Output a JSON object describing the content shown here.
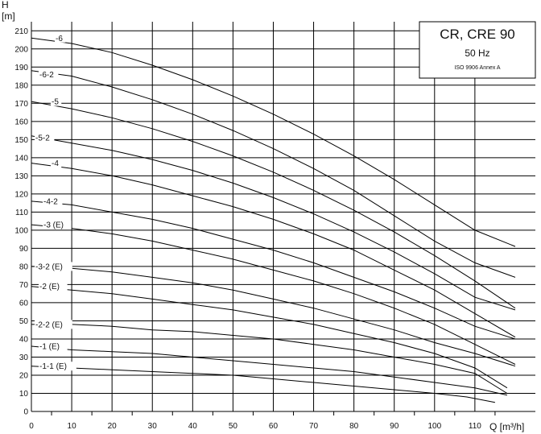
{
  "chart_data": {
    "type": "line",
    "title": "CR, CRE 90",
    "subtitle": "50 Hz",
    "note": "ISO 9906 Annex A",
    "xlabel": "Q [m³/h]",
    "ylabel_top": "H",
    "ylabel_unit": "[m]",
    "xlim": [
      0,
      125
    ],
    "ylim": [
      0,
      215
    ],
    "x_ticks": [
      "0",
      "10",
      "20",
      "30",
      "40",
      "50",
      "60",
      "70",
      "80",
      "90",
      "100",
      "110"
    ],
    "x_tick_values": [
      0,
      10,
      20,
      30,
      40,
      50,
      60,
      70,
      80,
      90,
      100,
      110
    ],
    "y_ticks": [
      "0",
      "10",
      "20",
      "30",
      "40",
      "50",
      "60",
      "70",
      "80",
      "90",
      "100",
      "110",
      "120",
      "130",
      "140",
      "150",
      "160",
      "170",
      "180",
      "190",
      "200",
      "210"
    ],
    "y_tick_values": [
      0,
      10,
      20,
      30,
      40,
      50,
      60,
      70,
      80,
      90,
      100,
      110,
      120,
      130,
      140,
      150,
      160,
      170,
      180,
      190,
      200,
      210
    ],
    "grid": true,
    "series": [
      {
        "name": "-6",
        "label_x": 6,
        "label_y": 206,
        "points": [
          [
            0,
            206
          ],
          [
            10,
            203
          ],
          [
            20,
            198
          ],
          [
            30,
            191
          ],
          [
            40,
            183
          ],
          [
            50,
            174
          ],
          [
            60,
            164
          ],
          [
            70,
            153
          ],
          [
            80,
            141
          ],
          [
            90,
            128
          ],
          [
            100,
            114
          ],
          [
            110,
            100
          ],
          [
            120,
            91
          ]
        ]
      },
      {
        "name": "-6-2",
        "label_x": 2,
        "label_y": 186,
        "points": [
          [
            0,
            188
          ],
          [
            10,
            185
          ],
          [
            20,
            179
          ],
          [
            30,
            172
          ],
          [
            40,
            164
          ],
          [
            50,
            155
          ],
          [
            60,
            145
          ],
          [
            70,
            134
          ],
          [
            80,
            122
          ],
          [
            90,
            108
          ],
          [
            100,
            94
          ],
          [
            110,
            82
          ],
          [
            120,
            74
          ]
        ]
      },
      {
        "name": "-5",
        "label_x": 5,
        "label_y": 171,
        "points": [
          [
            0,
            171
          ],
          [
            10,
            167
          ],
          [
            20,
            162
          ],
          [
            30,
            156
          ],
          [
            40,
            149
          ],
          [
            50,
            141
          ],
          [
            60,
            132
          ],
          [
            70,
            122
          ],
          [
            80,
            111
          ],
          [
            90,
            99
          ],
          [
            100,
            86
          ],
          [
            110,
            72
          ],
          [
            120,
            57
          ]
        ]
      },
      {
        "name": "-5-2",
        "label_x": 1,
        "label_y": 151,
        "points": [
          [
            0,
            152
          ],
          [
            10,
            148
          ],
          [
            20,
            144
          ],
          [
            30,
            139
          ],
          [
            40,
            133
          ],
          [
            50,
            126
          ],
          [
            60,
            118
          ],
          [
            70,
            109
          ],
          [
            80,
            99
          ],
          [
            90,
            88
          ],
          [
            100,
            76
          ],
          [
            110,
            63
          ],
          [
            120,
            56
          ]
        ]
      },
      {
        "name": "-4",
        "label_x": 5,
        "label_y": 137,
        "points": [
          [
            0,
            137
          ],
          [
            10,
            134
          ],
          [
            20,
            130
          ],
          [
            30,
            125
          ],
          [
            40,
            119
          ],
          [
            50,
            113
          ],
          [
            60,
            106
          ],
          [
            70,
            98
          ],
          [
            80,
            89
          ],
          [
            90,
            78
          ],
          [
            100,
            67
          ],
          [
            110,
            54
          ],
          [
            120,
            41
          ]
        ]
      },
      {
        "name": "-4-2",
        "label_x": 3,
        "label_y": 116,
        "points": [
          [
            0,
            116
          ],
          [
            10,
            114
          ],
          [
            20,
            110
          ],
          [
            30,
            106
          ],
          [
            40,
            101
          ],
          [
            50,
            95
          ],
          [
            60,
            89
          ],
          [
            70,
            82
          ],
          [
            80,
            74
          ],
          [
            90,
            66
          ],
          [
            100,
            57
          ],
          [
            110,
            47
          ],
          [
            120,
            40
          ]
        ]
      },
      {
        "name": "-3 (E)",
        "label_x": 3,
        "label_y": 103,
        "points": [
          [
            0,
            103
          ],
          [
            10,
            101
          ],
          [
            20,
            98
          ],
          [
            30,
            94
          ],
          [
            40,
            89
          ],
          [
            50,
            84
          ],
          [
            60,
            78
          ],
          [
            70,
            72
          ],
          [
            80,
            65
          ],
          [
            90,
            57
          ],
          [
            100,
            48
          ],
          [
            110,
            37
          ],
          [
            120,
            26
          ]
        ]
      },
      {
        "name": "-3-2 (E)",
        "label_x": 1,
        "label_y": 80,
        "points": [
          [
            0,
            80
          ],
          [
            10,
            79
          ],
          [
            20,
            77
          ],
          [
            30,
            74
          ],
          [
            40,
            71
          ],
          [
            50,
            67
          ],
          [
            60,
            62
          ],
          [
            70,
            57
          ],
          [
            80,
            51
          ],
          [
            90,
            45
          ],
          [
            100,
            38
          ],
          [
            110,
            32
          ],
          [
            120,
            25
          ]
        ]
      },
      {
        "name": "-2 (E)",
        "label_x": 2,
        "label_y": 69,
        "points": [
          [
            0,
            69
          ],
          [
            10,
            67
          ],
          [
            20,
            65
          ],
          [
            30,
            62
          ],
          [
            40,
            59
          ],
          [
            50,
            56
          ],
          [
            60,
            52
          ],
          [
            70,
            48
          ],
          [
            80,
            43
          ],
          [
            90,
            38
          ],
          [
            100,
            32
          ],
          [
            110,
            24
          ],
          [
            118,
            13
          ]
        ]
      },
      {
        "name": "-2-2 (E)",
        "label_x": 1,
        "label_y": 48,
        "points": [
          [
            0,
            48
          ],
          [
            10,
            48
          ],
          [
            20,
            47
          ],
          [
            30,
            45
          ],
          [
            40,
            44
          ],
          [
            50,
            42
          ],
          [
            60,
            40
          ],
          [
            70,
            37
          ],
          [
            80,
            34
          ],
          [
            90,
            30
          ],
          [
            100,
            26
          ],
          [
            110,
            21
          ],
          [
            118,
            10
          ]
        ]
      },
      {
        "name": "-1 (E)",
        "label_x": 2,
        "label_y": 36,
        "points": [
          [
            0,
            36
          ],
          [
            10,
            34
          ],
          [
            20,
            33
          ],
          [
            30,
            32
          ],
          [
            40,
            30
          ],
          [
            50,
            28
          ],
          [
            60,
            26
          ],
          [
            70,
            24
          ],
          [
            80,
            22
          ],
          [
            90,
            19
          ],
          [
            100,
            16
          ],
          [
            110,
            13
          ],
          [
            118,
            9
          ]
        ]
      },
      {
        "name": "-1-1 (E)",
        "label_x": 2,
        "label_y": 25,
        "points": [
          [
            0,
            25
          ],
          [
            10,
            24
          ],
          [
            20,
            23
          ],
          [
            30,
            22
          ],
          [
            40,
            21
          ],
          [
            50,
            20
          ],
          [
            60,
            18
          ],
          [
            70,
            16
          ],
          [
            80,
            14
          ],
          [
            90,
            12
          ],
          [
            100,
            10
          ],
          [
            108,
            8
          ],
          [
            115,
            5
          ]
        ]
      }
    ]
  }
}
